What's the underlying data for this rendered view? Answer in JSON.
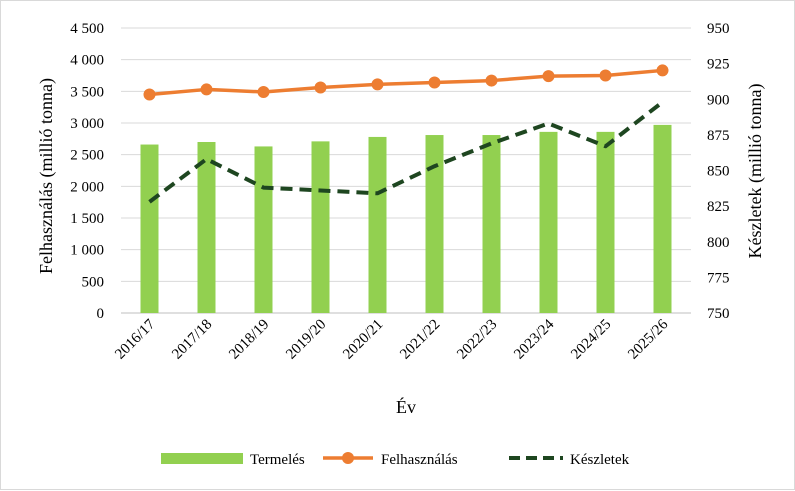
{
  "chart_data": {
    "type": "bar",
    "categories": [
      "2016/17",
      "2017/18",
      "2018/19",
      "2019/20",
      "2020/21",
      "2021/22",
      "2022/23",
      "2023/24",
      "2024/25",
      "2025/26"
    ],
    "series": [
      {
        "name": "Termelés",
        "type": "bar",
        "axis": "left",
        "color": "#92d050",
        "values": [
          2660,
          2700,
          2630,
          2710,
          2780,
          2810,
          2810,
          2860,
          2860,
          2970
        ]
      },
      {
        "name": "Felhasználás",
        "type": "line",
        "axis": "left",
        "color": "#ed7d31",
        "marker": "circle",
        "values": [
          3450,
          3530,
          3490,
          3560,
          3610,
          3640,
          3670,
          3740,
          3750,
          3830
        ]
      },
      {
        "name": "Készletek",
        "type": "line",
        "axis": "right",
        "color": "#1e4620",
        "dash": "dashed",
        "values": [
          828,
          858,
          838,
          836,
          834,
          853,
          869,
          883,
          867,
          898
        ]
      }
    ],
    "xlabel": "Év",
    "ylabel": "Felhasználás (millió tonna)",
    "y2label": "Készletek (millió tonna)",
    "ylim": [
      0,
      4500
    ],
    "y_ticks": [
      "0",
      "500",
      "1 000",
      "1 500",
      "2 000",
      "2 500",
      "3 000",
      "3 500",
      "4 000",
      "4 500"
    ],
    "y2lim": [
      750,
      950
    ],
    "y2_ticks": [
      "750",
      "775",
      "800",
      "825",
      "850",
      "875",
      "900",
      "925",
      "950"
    ],
    "grid": true,
    "legend_position": "bottom"
  }
}
